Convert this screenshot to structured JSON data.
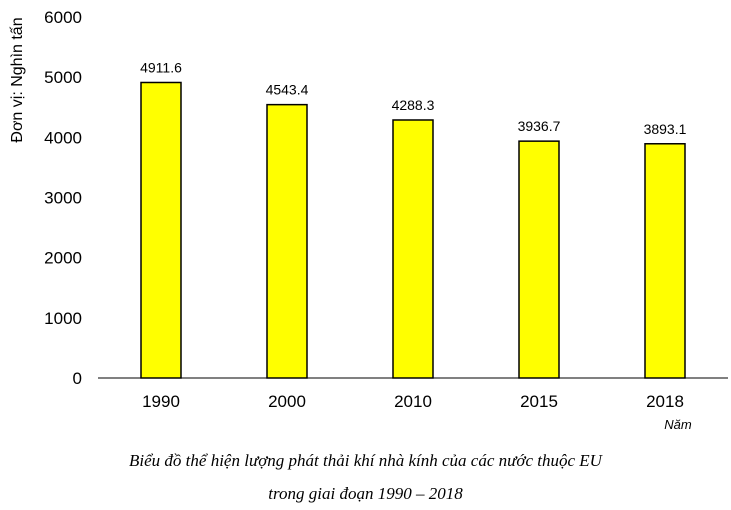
{
  "chart_data": {
    "type": "bar",
    "categories": [
      "1990",
      "2000",
      "2010",
      "2015",
      "2018"
    ],
    "values": [
      4911.6,
      4543.4,
      4288.3,
      3936.7,
      3893.1
    ],
    "data_labels": [
      "4911.6",
      "4543.4",
      "4288.3",
      "3936.7",
      "3893.1"
    ],
    "ylabel": "Đơn vị: Nghìn tấn",
    "xlabel": "Năm",
    "ylim": [
      0,
      6000
    ],
    "yticks": [
      0,
      1000,
      2000,
      3000,
      4000,
      5000,
      6000
    ],
    "bar_color": "#FFFF00",
    "bar_edge_color": "#000000",
    "grid": false,
    "caption_line1": "Biểu đồ thể hiện lượng phát thải khí nhà kính của các nước thuộc EU",
    "caption_line2": "trong giai đoạn 1990 – 2018"
  }
}
